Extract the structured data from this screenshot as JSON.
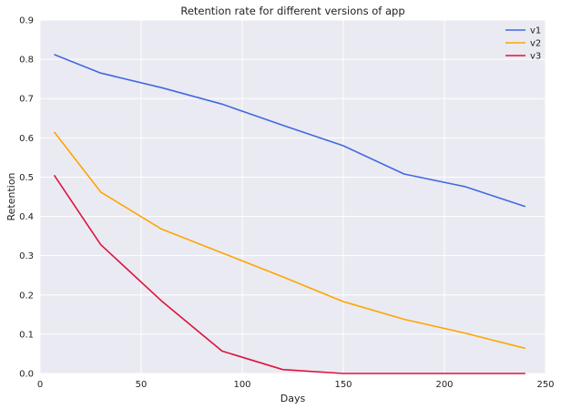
{
  "chart_data": {
    "type": "line",
    "title": "Retention rate for different versions of app",
    "xlabel": "Days",
    "ylabel": "Retention",
    "xlim": [
      0,
      250
    ],
    "ylim": [
      0,
      0.9
    ],
    "xticks": [
      "0",
      "50",
      "100",
      "150",
      "200",
      "250"
    ],
    "yticks": [
      "0.0",
      "0.1",
      "0.2",
      "0.3",
      "0.4",
      "0.5",
      "0.6",
      "0.7",
      "0.8",
      "0.9"
    ],
    "grid": true,
    "legend_position": "top-right",
    "x": [
      7,
      30,
      60,
      90,
      120,
      150,
      180,
      210,
      240
    ],
    "series": [
      {
        "name": "v1",
        "color": "#4169e1",
        "values": [
          0.812,
          0.765,
          0.728,
          0.686,
          0.632,
          0.58,
          0.508,
          0.476,
          0.425
        ]
      },
      {
        "name": "v2",
        "color": "#ffa500",
        "values": [
          0.615,
          0.462,
          0.368,
          0.307,
          0.246,
          0.183,
          0.138,
          0.103,
          0.064
        ]
      },
      {
        "name": "v3",
        "color": "#dc143c",
        "values": [
          0.505,
          0.328,
          0.185,
          0.057,
          0.01,
          0.0,
          0.0,
          0.0,
          0.0
        ]
      }
    ]
  }
}
